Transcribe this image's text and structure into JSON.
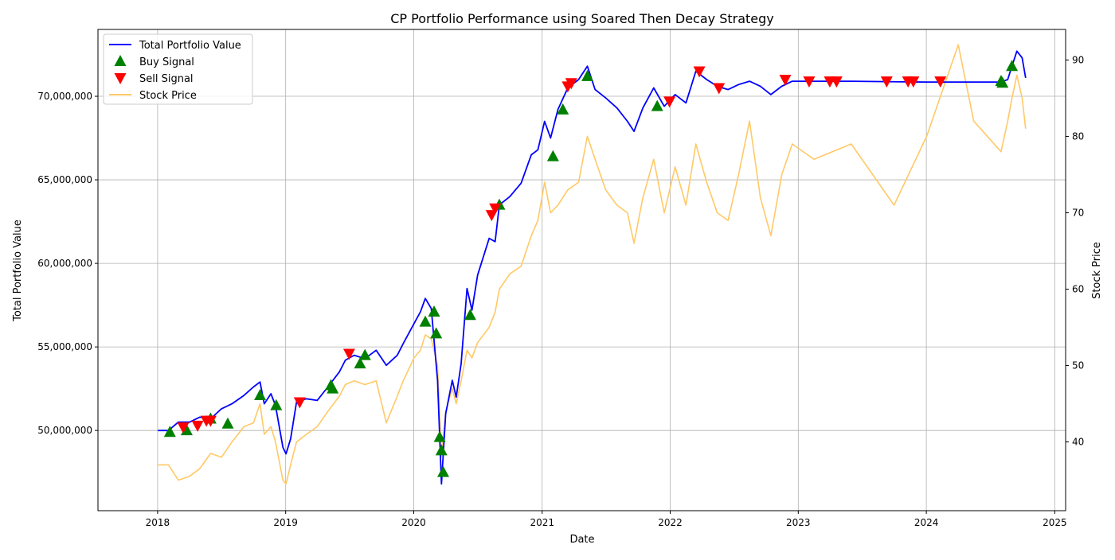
{
  "chart_data": {
    "type": "line",
    "title": "CP Portfolio Performance using Soared Then Decay Strategy",
    "xlabel": "Date",
    "ylabel": "Total Portfolio Value",
    "ylabel_right": "Stock Price",
    "xlim": [
      "2017-07-15",
      "2025-02-01"
    ],
    "ylim": [
      45200000,
      74000000
    ],
    "ylim_right": [
      31,
      94
    ],
    "x_ticks": [
      "2018",
      "2019",
      "2020",
      "2021",
      "2022",
      "2023",
      "2024",
      "2025"
    ],
    "y_ticks": [
      {
        "value": 50000000,
        "label": "50,000,000"
      },
      {
        "value": 55000000,
        "label": "55,000,000"
      },
      {
        "value": 60000000,
        "label": "60,000,000"
      },
      {
        "value": 65000000,
        "label": "65,000,000"
      },
      {
        "value": 70000000,
        "label": "70,000,000"
      }
    ],
    "y_ticks_right": [
      {
        "value": 40,
        "label": "40"
      },
      {
        "value": 50,
        "label": "50"
      },
      {
        "value": 60,
        "label": "60"
      },
      {
        "value": 70,
        "label": "70"
      },
      {
        "value": 80,
        "label": "80"
      },
      {
        "value": 90,
        "label": "90"
      }
    ],
    "grid": true,
    "legend_position": "top-left",
    "series": [
      {
        "name": "Total Portfolio Value",
        "axis": "left",
        "color": "#0000ff",
        "points": [
          [
            "2018-01-02",
            50000000
          ],
          [
            "2018-02-01",
            50000000
          ],
          [
            "2018-03-01",
            50500000
          ],
          [
            "2018-04-02",
            50500000
          ],
          [
            "2018-05-01",
            50800000
          ],
          [
            "2018-06-01",
            50700000
          ],
          [
            "2018-07-02",
            51300000
          ],
          [
            "2018-08-01",
            51600000
          ],
          [
            "2018-09-04",
            52100000
          ],
          [
            "2018-10-01",
            52600000
          ],
          [
            "2018-10-20",
            52900000
          ],
          [
            "2018-11-01",
            51600000
          ],
          [
            "2018-11-20",
            52200000
          ],
          [
            "2018-12-03",
            51500000
          ],
          [
            "2018-12-24",
            49000000
          ],
          [
            "2019-01-02",
            48600000
          ],
          [
            "2019-01-15",
            49500000
          ],
          [
            "2019-02-01",
            51700000
          ],
          [
            "2019-03-01",
            51900000
          ],
          [
            "2019-04-01",
            51800000
          ],
          [
            "2019-05-01",
            52600000
          ],
          [
            "2019-06-03",
            53500000
          ],
          [
            "2019-06-20",
            54200000
          ],
          [
            "2019-07-15",
            54500000
          ],
          [
            "2019-08-15",
            54300000
          ],
          [
            "2019-09-16",
            54800000
          ],
          [
            "2019-10-15",
            53900000
          ],
          [
            "2019-11-15",
            54500000
          ],
          [
            "2019-12-02",
            55200000
          ],
          [
            "2020-01-02",
            56400000
          ],
          [
            "2020-01-20",
            57100000
          ],
          [
            "2020-02-03",
            57900000
          ],
          [
            "2020-02-20",
            57300000
          ],
          [
            "2020-03-09",
            53000000
          ],
          [
            "2020-03-20",
            46800000
          ],
          [
            "2020-04-01",
            51000000
          ],
          [
            "2020-04-20",
            53000000
          ],
          [
            "2020-05-01",
            52000000
          ],
          [
            "2020-05-15",
            54000000
          ],
          [
            "2020-06-01",
            58500000
          ],
          [
            "2020-06-15",
            57200000
          ],
          [
            "2020-07-01",
            59300000
          ],
          [
            "2020-08-03",
            61500000
          ],
          [
            "2020-08-20",
            61300000
          ],
          [
            "2020-09-01",
            63500000
          ],
          [
            "2020-10-01",
            64000000
          ],
          [
            "2020-11-02",
            64800000
          ],
          [
            "2020-12-01",
            66500000
          ],
          [
            "2020-12-20",
            66800000
          ],
          [
            "2021-01-08",
            68500000
          ],
          [
            "2021-01-25",
            67500000
          ],
          [
            "2021-02-15",
            69200000
          ],
          [
            "2021-03-15",
            70500000
          ],
          [
            "2021-04-15",
            71000000
          ],
          [
            "2021-05-10",
            71800000
          ],
          [
            "2021-06-01",
            70400000
          ],
          [
            "2021-07-01",
            69900000
          ],
          [
            "2021-08-02",
            69300000
          ],
          [
            "2021-09-01",
            68500000
          ],
          [
            "2021-09-20",
            67900000
          ],
          [
            "2021-10-15",
            69300000
          ],
          [
            "2021-11-15",
            70500000
          ],
          [
            "2021-12-15",
            69400000
          ],
          [
            "2022-01-15",
            70100000
          ],
          [
            "2022-02-15",
            69600000
          ],
          [
            "2022-03-15",
            71500000
          ],
          [
            "2022-04-15",
            71000000
          ],
          [
            "2022-05-15",
            70600000
          ],
          [
            "2022-06-15",
            70400000
          ],
          [
            "2022-07-15",
            70700000
          ],
          [
            "2022-08-15",
            70900000
          ],
          [
            "2022-09-15",
            70600000
          ],
          [
            "2022-10-15",
            70100000
          ],
          [
            "2022-11-15",
            70600000
          ],
          [
            "2022-12-15",
            70900000
          ],
          [
            "2023-02-15",
            70900000
          ],
          [
            "2023-06-01",
            70900000
          ],
          [
            "2024-01-02",
            70850000
          ],
          [
            "2024-04-01",
            70850000
          ],
          [
            "2024-08-01",
            70850000
          ],
          [
            "2024-08-20",
            71000000
          ],
          [
            "2024-09-01",
            71800000
          ],
          [
            "2024-09-15",
            72700000
          ],
          [
            "2024-09-30",
            72300000
          ],
          [
            "2024-10-10",
            71100000
          ]
        ]
      },
      {
        "name": "Stock Price",
        "axis": "right",
        "color": "#ffc966",
        "points": [
          [
            "2018-01-02",
            37
          ],
          [
            "2018-02-01",
            37
          ],
          [
            "2018-03-01",
            35
          ],
          [
            "2018-04-02",
            35.5
          ],
          [
            "2018-05-01",
            36.5
          ],
          [
            "2018-06-01",
            38.5
          ],
          [
            "2018-07-02",
            38
          ],
          [
            "2018-08-01",
            40
          ],
          [
            "2018-09-04",
            42
          ],
          [
            "2018-10-01",
            42.5
          ],
          [
            "2018-10-20",
            45
          ],
          [
            "2018-11-01",
            41
          ],
          [
            "2018-11-20",
            42
          ],
          [
            "2018-12-03",
            40
          ],
          [
            "2018-12-24",
            35
          ],
          [
            "2019-01-02",
            34.5
          ],
          [
            "2019-01-15",
            37
          ],
          [
            "2019-02-01",
            40
          ],
          [
            "2019-03-01",
            41
          ],
          [
            "2019-04-01",
            42
          ],
          [
            "2019-05-01",
            44
          ],
          [
            "2019-06-03",
            46
          ],
          [
            "2019-06-20",
            47.5
          ],
          [
            "2019-07-15",
            48
          ],
          [
            "2019-08-15",
            47.5
          ],
          [
            "2019-09-16",
            48
          ],
          [
            "2019-10-15",
            42.5
          ],
          [
            "2019-11-15",
            46
          ],
          [
            "2019-12-02",
            48
          ],
          [
            "2020-01-02",
            51
          ],
          [
            "2020-01-20",
            52
          ],
          [
            "2020-02-03",
            54
          ],
          [
            "2020-02-20",
            53.5
          ],
          [
            "2020-03-09",
            50
          ],
          [
            "2020-03-20",
            38
          ],
          [
            "2020-04-01",
            44
          ],
          [
            "2020-04-20",
            47
          ],
          [
            "2020-05-01",
            45
          ],
          [
            "2020-05-15",
            48
          ],
          [
            "2020-06-01",
            52
          ],
          [
            "2020-06-15",
            51
          ],
          [
            "2020-07-01",
            53
          ],
          [
            "2020-08-03",
            55
          ],
          [
            "2020-08-20",
            57
          ],
          [
            "2020-09-01",
            60
          ],
          [
            "2020-10-01",
            62
          ],
          [
            "2020-11-02",
            63
          ],
          [
            "2020-12-01",
            67
          ],
          [
            "2020-12-20",
            69
          ],
          [
            "2021-01-08",
            74
          ],
          [
            "2021-01-25",
            70
          ],
          [
            "2021-02-15",
            71
          ],
          [
            "2021-03-15",
            73
          ],
          [
            "2021-04-15",
            74
          ],
          [
            "2021-05-10",
            80
          ],
          [
            "2021-06-01",
            77
          ],
          [
            "2021-07-01",
            73
          ],
          [
            "2021-08-02",
            71
          ],
          [
            "2021-09-01",
            70
          ],
          [
            "2021-09-20",
            66
          ],
          [
            "2021-10-15",
            72
          ],
          [
            "2021-11-15",
            77
          ],
          [
            "2021-12-15",
            70
          ],
          [
            "2022-01-15",
            76
          ],
          [
            "2022-02-15",
            71
          ],
          [
            "2022-03-15",
            79
          ],
          [
            "2022-04-15",
            74
          ],
          [
            "2022-05-15",
            70
          ],
          [
            "2022-06-15",
            69
          ],
          [
            "2022-07-15",
            75
          ],
          [
            "2022-08-15",
            82
          ],
          [
            "2022-09-15",
            72
          ],
          [
            "2022-10-15",
            67
          ],
          [
            "2022-11-15",
            75
          ],
          [
            "2022-12-15",
            79
          ],
          [
            "2023-02-15",
            77
          ],
          [
            "2023-06-01",
            79
          ],
          [
            "2023-10-01",
            71
          ],
          [
            "2024-01-02",
            80
          ],
          [
            "2024-04-01",
            92
          ],
          [
            "2024-05-15",
            82
          ],
          [
            "2024-08-01",
            78
          ],
          [
            "2024-08-20",
            82
          ],
          [
            "2024-09-01",
            85
          ],
          [
            "2024-09-15",
            88
          ],
          [
            "2024-09-30",
            85
          ],
          [
            "2024-10-10",
            81
          ]
        ]
      }
    ],
    "signals": [
      {
        "name": "Buy Signal",
        "marker": "triangle-up",
        "color": "#008000",
        "axis": "left",
        "points": [
          [
            "2018-02-05",
            49900000
          ],
          [
            "2018-03-25",
            50000000
          ],
          [
            "2018-06-01",
            50700000
          ],
          [
            "2018-07-20",
            50400000
          ],
          [
            "2018-10-20",
            52100000
          ],
          [
            "2018-12-05",
            51500000
          ],
          [
            "2019-05-10",
            52700000
          ],
          [
            "2019-05-15",
            52500000
          ],
          [
            "2019-08-01",
            54000000
          ],
          [
            "2019-08-15",
            54500000
          ],
          [
            "2020-02-03",
            56500000
          ],
          [
            "2020-02-28",
            57100000
          ],
          [
            "2020-03-05",
            55800000
          ],
          [
            "2020-03-15",
            49600000
          ],
          [
            "2020-03-20",
            48800000
          ],
          [
            "2020-03-25",
            47500000
          ],
          [
            "2020-06-10",
            56900000
          ],
          [
            "2020-09-01",
            63500000
          ],
          [
            "2021-02-01",
            66400000
          ],
          [
            "2021-03-01",
            69200000
          ],
          [
            "2021-05-10",
            71200000
          ],
          [
            "2021-11-25",
            69400000
          ],
          [
            "2024-08-01",
            70900000
          ],
          [
            "2024-08-05",
            70800000
          ],
          [
            "2024-09-01",
            71800000
          ]
        ]
      },
      {
        "name": "Sell Signal",
        "marker": "triangle-down",
        "color": "#ff0000",
        "axis": "left",
        "points": [
          [
            "2018-03-15",
            50200000
          ],
          [
            "2018-04-25",
            50300000
          ],
          [
            "2018-05-20",
            50600000
          ],
          [
            "2018-06-01",
            50600000
          ],
          [
            "2019-02-10",
            51700000
          ],
          [
            "2019-07-01",
            54600000
          ],
          [
            "2020-08-10",
            62900000
          ],
          [
            "2020-08-20",
            63300000
          ],
          [
            "2021-03-15",
            70600000
          ],
          [
            "2021-03-25",
            70800000
          ],
          [
            "2021-12-30",
            69700000
          ],
          [
            "2022-03-25",
            71500000
          ],
          [
            "2022-05-20",
            70500000
          ],
          [
            "2022-11-25",
            71000000
          ],
          [
            "2023-02-01",
            70900000
          ],
          [
            "2023-04-01",
            70900000
          ],
          [
            "2023-04-20",
            70900000
          ],
          [
            "2023-09-10",
            70900000
          ],
          [
            "2023-11-10",
            70900000
          ],
          [
            "2023-11-25",
            70900000
          ],
          [
            "2024-02-10",
            70900000
          ]
        ]
      }
    ]
  }
}
